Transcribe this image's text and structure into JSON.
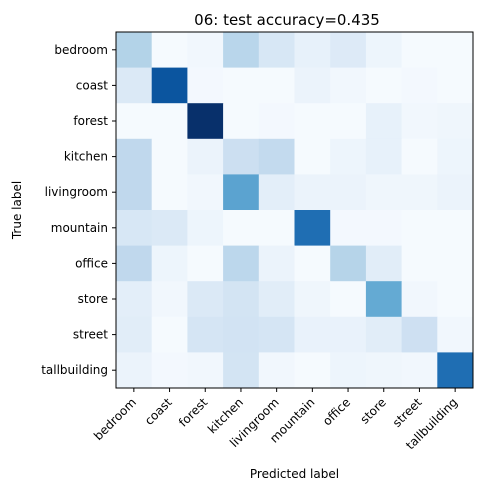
{
  "chart_data": {
    "type": "heatmap",
    "title": "06: test accuracy=0.435",
    "xlabel": "Predicted label",
    "ylabel": "True label",
    "categories": [
      "bedroom",
      "coast",
      "forest",
      "kitchen",
      "livingroom",
      "mountain",
      "office",
      "store",
      "street",
      "tallbuilding"
    ],
    "x_categories": [
      "bedroom",
      "coast",
      "forest",
      "kitchen",
      "livingroom",
      "mountain",
      "office",
      "store",
      "street",
      "tallbuilding"
    ],
    "y_categories": [
      "bedroom",
      "coast",
      "forest",
      "kitchen",
      "livingroom",
      "mountain",
      "office",
      "store",
      "street",
      "tallbuilding"
    ],
    "colormap": "Blues",
    "grid": false,
    "values": [
      [
        0.31,
        0.01,
        0.03,
        0.29,
        0.16,
        0.08,
        0.13,
        0.05,
        0.01,
        0.01
      ],
      [
        0.14,
        0.86,
        0.02,
        0.01,
        0.01,
        0.06,
        0.03,
        0.01,
        0.02,
        0.01
      ],
      [
        0.01,
        0.01,
        1.0,
        0.01,
        0.02,
        0.01,
        0.01,
        0.08,
        0.03,
        0.04
      ],
      [
        0.27,
        0.01,
        0.06,
        0.22,
        0.26,
        0.01,
        0.05,
        0.08,
        0.01,
        0.05
      ],
      [
        0.27,
        0.01,
        0.03,
        0.55,
        0.1,
        0.06,
        0.06,
        0.04,
        0.04,
        0.06
      ],
      [
        0.16,
        0.14,
        0.05,
        0.01,
        0.01,
        0.76,
        0.02,
        0.02,
        0.01,
        0.01
      ],
      [
        0.27,
        0.05,
        0.01,
        0.28,
        0.06,
        0.01,
        0.3,
        0.11,
        0.01,
        0.01
      ],
      [
        0.1,
        0.03,
        0.14,
        0.18,
        0.11,
        0.04,
        0.01,
        0.52,
        0.03,
        0.01
      ],
      [
        0.11,
        0.01,
        0.17,
        0.19,
        0.17,
        0.07,
        0.07,
        0.11,
        0.21,
        0.03
      ],
      [
        0.06,
        0.02,
        0.03,
        0.18,
        0.03,
        0.01,
        0.05,
        0.04,
        0.03,
        0.76
      ]
    ]
  }
}
